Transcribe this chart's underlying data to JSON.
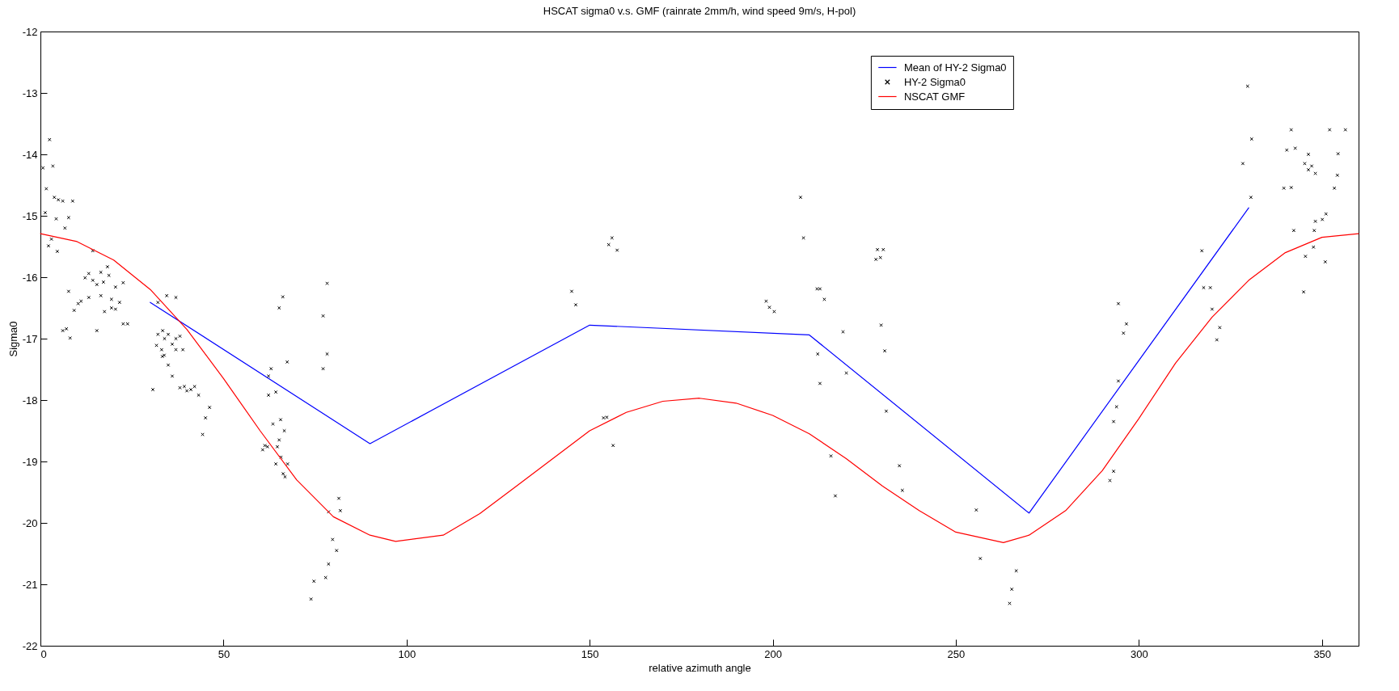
{
  "chart_data": {
    "type": "line",
    "title": "HSCAT sigma0 v.s. GMF (rainrate 2mm/h, wind speed 9m/s, H-pol)",
    "xlabel": "relative azimuth angle",
    "ylabel": "Sigma0",
    "xlim": [
      0,
      360
    ],
    "xticks": [
      0,
      50,
      100,
      150,
      200,
      250,
      300,
      350
    ],
    "ylim": [
      -22,
      -12
    ],
    "yticks": [
      -22,
      -21,
      -20,
      -19,
      -18,
      -17,
      -16,
      -15,
      -14,
      -13,
      -12
    ],
    "grid": false,
    "legend": "top right",
    "series": [
      {
        "name": "Mean of HY-2 Sigma0",
        "color": "#0000ff",
        "x": [
          30,
          90,
          150,
          210,
          270,
          330
        ],
        "values": [
          -16.41,
          -18.71,
          -16.78,
          -16.94,
          -19.84,
          -14.87
        ]
      },
      {
        "name": "HY-2 Sigma0",
        "type": "scatter",
        "color": "#000000",
        "marker": "cross",
        "x": [
          2.5,
          0.7,
          3.4,
          1.6,
          3.8,
          4.9,
          6.1,
          8.8,
          1.3,
          4.3,
          7.7,
          6.7,
          3.0,
          2.2,
          4.6,
          14.3,
          13.2,
          12.2,
          16.5,
          18.3,
          18.7,
          14.3,
          17.2,
          15.4,
          22.6,
          20.5,
          7.7,
          13.2,
          16.5,
          11.1,
          10.3,
          19.4,
          21.6,
          9.2,
          17.5,
          19.4,
          20.5,
          22.6,
          23.8,
          15.4,
          6.1,
          7.1,
          8.1,
          34.5,
          37.0,
          32.1,
          32.1,
          33.4,
          34.9,
          37.0,
          38.1,
          31.7,
          33.9,
          36.0,
          33.1,
          37.0,
          38.9,
          33.8,
          33.3,
          34.9,
          36.0,
          30.7,
          38.1,
          39.3,
          40.0,
          41.1,
          42.1,
          43.2,
          46.2,
          45.1,
          44.3,
          66.2,
          65.2,
          78.3,
          77.2,
          78.3,
          77.2,
          67.4,
          63.0,
          62.3,
          64.3,
          62.3,
          65.6,
          63.5,
          66.6,
          81.5,
          78.7,
          81.9,
          79.8,
          80.9,
          78.7,
          77.9,
          74.7,
          73.9,
          65.2,
          61.3,
          60.7,
          62.0,
          64.7,
          65.7,
          64.3,
          67.5,
          66.3,
          66.8,
          156.1,
          155.2,
          157.5,
          145.1,
          146.2,
          153.8,
          154.7,
          156.4,
          207.6,
          208.4,
          228.6,
          230.2,
          229.4,
          228.2,
          212.1,
          212.9,
          214.1,
          198.2,
          199.1,
          200.4,
          219.2,
          229.6,
          230.6,
          212.3,
          220.1,
          212.9,
          231.0,
          215.9,
          234.6,
          235.4,
          217.1,
          255.6,
          256.7,
          266.5,
          265.3,
          264.7,
          329.7,
          330.8,
          328.4,
          330.6,
          341.6,
          342.7,
          340.4,
          346.3,
          345.3,
          347.2,
          346.3,
          348.2,
          352.1,
          356.4,
          354.4,
          354.2,
          353.4,
          341.6,
          339.6,
          351.1,
          350.1,
          348.2,
          347.9,
          342.3,
          347.7,
          345.5,
          350.9,
          345.0,
          317.2,
          317.7,
          319.5,
          320.0,
          322.1,
          321.3,
          294.4,
          296.6,
          295.8,
          294.4,
          293.9,
          293.1,
          293.1,
          292.1
        ],
        "values": [
          -13.76,
          -14.22,
          -14.19,
          -14.56,
          -14.7,
          -14.74,
          -14.76,
          -14.76,
          -14.95,
          -15.05,
          -15.03,
          -15.2,
          -15.38,
          -15.49,
          -15.58,
          -15.57,
          -15.94,
          -16.01,
          -15.92,
          -15.83,
          -15.97,
          -16.05,
          -16.08,
          -16.12,
          -16.09,
          -16.16,
          -16.23,
          -16.33,
          -16.3,
          -16.39,
          -16.43,
          -16.36,
          -16.41,
          -16.54,
          -16.56,
          -16.5,
          -16.52,
          -16.76,
          -16.76,
          -16.87,
          -16.87,
          -16.84,
          -16.99,
          -16.3,
          -16.33,
          -16.41,
          -16.93,
          -16.87,
          -16.93,
          -17.0,
          -16.96,
          -17.11,
          -17.0,
          -17.09,
          -17.18,
          -17.18,
          -17.18,
          -17.27,
          -17.29,
          -17.43,
          -17.61,
          -17.83,
          -17.8,
          -17.78,
          -17.85,
          -17.83,
          -17.78,
          -17.92,
          -18.12,
          -18.29,
          -18.56,
          -16.32,
          -16.5,
          -16.1,
          -16.63,
          -17.25,
          -17.49,
          -17.38,
          -17.49,
          -17.61,
          -17.87,
          -17.92,
          -18.32,
          -18.39,
          -18.5,
          -19.6,
          -19.82,
          -19.8,
          -20.27,
          -20.45,
          -20.67,
          -20.89,
          -20.95,
          -21.24,
          -18.65,
          -18.74,
          -18.81,
          -18.76,
          -18.76,
          -18.93,
          -19.04,
          -19.04,
          -19.2,
          -19.25,
          -15.36,
          -15.47,
          -15.56,
          -16.23,
          -16.45,
          -18.29,
          -18.28,
          -18.74,
          -14.7,
          -15.36,
          -15.55,
          -15.55,
          -15.68,
          -15.71,
          -16.19,
          -16.19,
          -16.36,
          -16.39,
          -16.49,
          -16.56,
          -16.89,
          -16.78,
          -17.2,
          -17.25,
          -17.56,
          -17.73,
          -18.18,
          -18.91,
          -19.07,
          -19.47,
          -19.56,
          -19.79,
          -20.58,
          -20.78,
          -21.08,
          -21.31,
          -12.89,
          -13.75,
          -14.15,
          -14.7,
          -13.6,
          -13.9,
          -13.93,
          -14.0,
          -14.15,
          -14.19,
          -14.25,
          -14.31,
          -13.6,
          -13.6,
          -13.99,
          -14.34,
          -14.55,
          -14.54,
          -14.55,
          -14.97,
          -15.06,
          -15.09,
          -15.24,
          -15.24,
          -15.51,
          -15.66,
          -15.75,
          -16.24,
          -15.57,
          -16.17,
          -16.17,
          -16.52,
          -16.82,
          -17.02,
          -16.43,
          -16.76,
          -16.91,
          -17.69,
          -18.11,
          -18.35,
          -19.16,
          -19.31
        ]
      },
      {
        "name": "NSCAT GMF",
        "color": "#ff0000",
        "x": [
          0,
          10,
          20,
          30,
          40,
          50,
          60,
          70,
          80,
          90,
          97,
          110,
          120,
          130,
          140,
          150,
          160,
          170,
          180,
          190,
          200,
          210,
          220,
          230,
          240,
          250,
          263,
          270,
          280,
          290,
          300,
          310,
          320,
          330,
          340,
          350,
          360
        ],
        "values": [
          -15.29,
          -15.42,
          -15.72,
          -16.2,
          -16.85,
          -17.65,
          -18.5,
          -19.3,
          -19.9,
          -20.2,
          -20.3,
          -20.2,
          -19.85,
          -19.4,
          -18.95,
          -18.5,
          -18.2,
          -18.02,
          -17.97,
          -18.05,
          -18.25,
          -18.55,
          -18.95,
          -19.4,
          -19.8,
          -20.15,
          -20.32,
          -20.2,
          -19.8,
          -19.15,
          -18.3,
          -17.4,
          -16.65,
          -16.05,
          -15.6,
          -15.35,
          -15.29
        ]
      }
    ]
  }
}
